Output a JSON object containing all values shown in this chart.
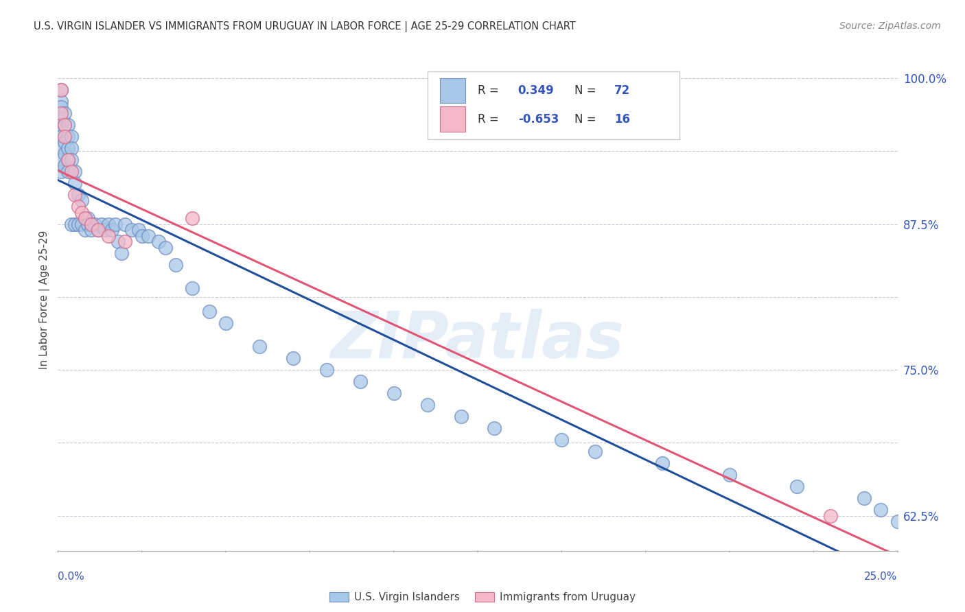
{
  "title": "U.S. VIRGIN ISLANDER VS IMMIGRANTS FROM URUGUAY IN LABOR FORCE | AGE 25-29 CORRELATION CHART",
  "source": "Source: ZipAtlas.com",
  "ylabel": "In Labor Force | Age 25-29",
  "xlim": [
    0.0,
    0.25
  ],
  "ylim": [
    0.595,
    1.025
  ],
  "y_gridlines": [
    0.625,
    0.6875,
    0.75,
    0.8125,
    0.875,
    0.9375,
    1.0
  ],
  "y_tick_labels_right": [
    "62.5%",
    "",
    "75.0%",
    "",
    "87.5%",
    "",
    "100.0%"
  ],
  "blue_R": 0.349,
  "blue_N": 72,
  "pink_R": -0.653,
  "pink_N": 16,
  "blue_color": "#A8C8E8",
  "pink_color": "#F4B8C8",
  "blue_edge_color": "#7090C0",
  "pink_edge_color": "#D07090",
  "blue_line_color": "#1F4E9A",
  "pink_line_color": "#E05575",
  "blue_scatter_x": [
    0.001,
    0.001,
    0.001,
    0.001,
    0.001,
    0.001,
    0.001,
    0.001,
    0.001,
    0.001,
    0.002,
    0.002,
    0.002,
    0.002,
    0.002,
    0.003,
    0.003,
    0.003,
    0.003,
    0.003,
    0.004,
    0.004,
    0.004,
    0.004,
    0.005,
    0.005,
    0.005,
    0.006,
    0.006,
    0.007,
    0.007,
    0.008,
    0.008,
    0.009,
    0.009,
    0.01,
    0.011,
    0.012,
    0.013,
    0.014,
    0.015,
    0.016,
    0.017,
    0.018,
    0.019,
    0.02,
    0.022,
    0.024,
    0.025,
    0.027,
    0.03,
    0.032,
    0.035,
    0.04,
    0.045,
    0.05,
    0.06,
    0.07,
    0.08,
    0.09,
    0.1,
    0.11,
    0.12,
    0.13,
    0.15,
    0.16,
    0.18,
    0.2,
    0.22,
    0.24,
    0.245,
    0.25
  ],
  "blue_scatter_y": [
    0.99,
    0.98,
    0.975,
    0.965,
    0.96,
    0.955,
    0.95,
    0.94,
    0.93,
    0.92,
    0.97,
    0.96,
    0.945,
    0.935,
    0.925,
    0.96,
    0.95,
    0.94,
    0.93,
    0.92,
    0.95,
    0.94,
    0.93,
    0.875,
    0.92,
    0.91,
    0.875,
    0.9,
    0.875,
    0.895,
    0.875,
    0.88,
    0.87,
    0.88,
    0.875,
    0.87,
    0.875,
    0.87,
    0.875,
    0.87,
    0.875,
    0.87,
    0.875,
    0.86,
    0.85,
    0.875,
    0.87,
    0.87,
    0.865,
    0.865,
    0.86,
    0.855,
    0.84,
    0.82,
    0.8,
    0.79,
    0.77,
    0.76,
    0.75,
    0.74,
    0.73,
    0.72,
    0.71,
    0.7,
    0.69,
    0.68,
    0.67,
    0.66,
    0.65,
    0.64,
    0.63,
    0.62
  ],
  "pink_scatter_x": [
    0.001,
    0.001,
    0.002,
    0.002,
    0.003,
    0.004,
    0.005,
    0.006,
    0.007,
    0.008,
    0.01,
    0.012,
    0.015,
    0.02,
    0.04,
    0.23
  ],
  "pink_scatter_y": [
    0.99,
    0.97,
    0.96,
    0.95,
    0.93,
    0.92,
    0.9,
    0.89,
    0.885,
    0.88,
    0.875,
    0.87,
    0.865,
    0.86,
    0.88,
    0.625
  ],
  "watermark_text": "ZIPatlas",
  "legend_label_blue": "U.S. Virgin Islanders",
  "legend_label_pink": "Immigrants from Uruguay",
  "grid_color": "#C8C8D8",
  "background_color": "#FFFFFF",
  "accent_color": "#3355BB"
}
